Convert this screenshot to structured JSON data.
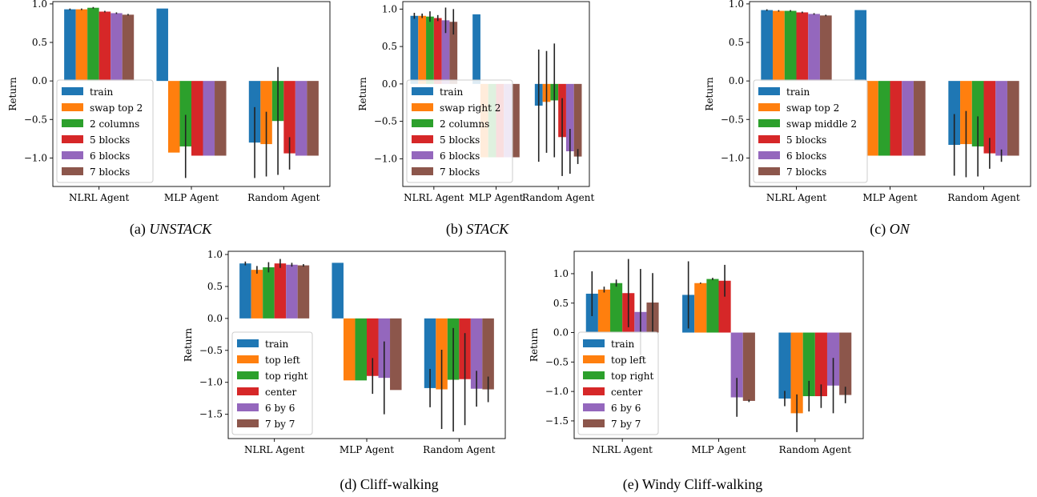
{
  "colors": [
    "#1f77b4",
    "#ff7f0e",
    "#2ca02c",
    "#d62728",
    "#9467bd",
    "#8c564b"
  ],
  "chart_data": [
    {
      "type": "bar",
      "caption_prefix": "(a) ",
      "caption_main": "UNSTACK",
      "caption_italic": true,
      "ylabel": "Return",
      "ylim": [
        -1.37,
        1.03
      ],
      "yticks": [
        "1.0",
        "0.5",
        "0.0",
        "−0.5",
        "−1.0"
      ],
      "ytick_values": [
        1.0,
        0.5,
        0.0,
        -0.5,
        -1.0
      ],
      "categories": [
        "NLRL Agent",
        "MLP Agent",
        "Random Agent"
      ],
      "legend_position": "lower-left",
      "series": [
        {
          "name": "train",
          "values": [
            0.93,
            0.94,
            -0.8
          ],
          "err": [
            0.01,
            0,
            0.46
          ]
        },
        {
          "name": "swap top 2",
          "values": [
            0.93,
            -0.93,
            -0.82
          ],
          "err": [
            0.01,
            0,
            0.42
          ]
        },
        {
          "name": "2 columns",
          "values": [
            0.95,
            -0.85,
            -0.52
          ],
          "err": [
            0.01,
            0.41,
            0.7
          ]
        },
        {
          "name": "5 blocks",
          "values": [
            0.9,
            -0.97,
            -0.94
          ],
          "err": [
            0.01,
            0,
            0.21
          ]
        },
        {
          "name": "6 blocks",
          "values": [
            0.88,
            -0.97,
            -0.97
          ],
          "err": [
            0.01,
            0,
            0
          ]
        },
        {
          "name": "7 blocks",
          "values": [
            0.86,
            -0.97,
            -0.97
          ],
          "err": [
            0.01,
            0,
            0
          ]
        }
      ]
    },
    {
      "type": "bar",
      "caption_prefix": "(b) ",
      "caption_main": "STACK",
      "caption_italic": true,
      "ylabel": "Return",
      "ylim": [
        -1.37,
        1.1
      ],
      "yticks": [
        "1.0",
        "0.5",
        "0.0",
        "−0.5",
        "−1.0"
      ],
      "ytick_values": [
        1.0,
        0.5,
        0.0,
        -0.5,
        -1.0
      ],
      "categories": [
        "NLRL Agent",
        "MLP Agent",
        "Random Agent"
      ],
      "legend_position": "lower-left",
      "series": [
        {
          "name": "train",
          "values": [
            0.91,
            0.93,
            -0.29
          ],
          "err": [
            0.04,
            0,
            0.75
          ]
        },
        {
          "name": "swap right 2",
          "values": [
            0.91,
            -0.98,
            -0.24
          ],
          "err": [
            0.03,
            0,
            0.68
          ]
        },
        {
          "name": "2 columns",
          "values": [
            0.9,
            -0.98,
            -0.22
          ],
          "err": [
            0.07,
            0,
            0.76
          ]
        },
        {
          "name": "5 blocks",
          "values": [
            0.88,
            -0.98,
            -0.71
          ],
          "err": [
            0.04,
            0,
            0.52
          ]
        },
        {
          "name": "6 blocks",
          "values": [
            0.85,
            -0.98,
            -0.9
          ],
          "err": [
            0.17,
            0,
            0.3
          ]
        },
        {
          "name": "7 blocks",
          "values": [
            0.83,
            -0.98,
            -0.97
          ],
          "err": [
            0.17,
            0,
            0.1
          ]
        }
      ]
    },
    {
      "type": "bar",
      "caption_prefix": "(c) ",
      "caption_main": "ON",
      "caption_italic": true,
      "ylabel": "Return",
      "ylim": [
        -1.37,
        1.03
      ],
      "yticks": [
        "1.0",
        "0.5",
        "0.0",
        "−0.5",
        "−1.0"
      ],
      "ytick_values": [
        1.0,
        0.5,
        0.0,
        -0.5,
        -1.0
      ],
      "categories": [
        "NLRL Agent",
        "MLP Agent",
        "Random Agent"
      ],
      "legend_position": "lower-left",
      "series": [
        {
          "name": "train",
          "values": [
            0.92,
            0.92,
            -0.83
          ],
          "err": [
            0.01,
            0,
            0.4
          ]
        },
        {
          "name": "swap top 2",
          "values": [
            0.91,
            -0.97,
            -0.82
          ],
          "err": [
            0.01,
            0,
            0.43
          ]
        },
        {
          "name": "swap middle 2",
          "values": [
            0.91,
            -0.97,
            -0.85
          ],
          "err": [
            0.01,
            0,
            0.39
          ]
        },
        {
          "name": "5 blocks",
          "values": [
            0.89,
            -0.97,
            -0.94
          ],
          "err": [
            0.01,
            0,
            0.2
          ]
        },
        {
          "name": "6 blocks",
          "values": [
            0.87,
            -0.97,
            -0.97
          ],
          "err": [
            0.01,
            0,
            0.08
          ]
        },
        {
          "name": "7 blocks",
          "values": [
            0.85,
            -0.97,
            -0.97
          ],
          "err": [
            0.01,
            0,
            0
          ]
        }
      ]
    },
    {
      "type": "bar",
      "caption_prefix": "(d) ",
      "caption_main": "Cliff-walking",
      "caption_italic": false,
      "ylabel": "Return",
      "ylim": [
        -1.88,
        1.05
      ],
      "yticks": [
        "1.0",
        "0.5",
        "0.0",
        "−0.5",
        "−1.0",
        "−1.5"
      ],
      "ytick_values": [
        1.0,
        0.5,
        0.0,
        -0.5,
        -1.0,
        -1.5
      ],
      "categories": [
        "NLRL Agent",
        "MLP Agent",
        "Random Agent"
      ],
      "legend_position": "lower-left",
      "series": [
        {
          "name": "train",
          "values": [
            0.86,
            0.87,
            -1.09
          ],
          "err": [
            0.03,
            0,
            0.3
          ]
        },
        {
          "name": "top left",
          "values": [
            0.76,
            -0.97,
            -1.11
          ],
          "err": [
            0.06,
            0,
            0.62
          ]
        },
        {
          "name": "top right",
          "values": [
            0.8,
            -0.97,
            -0.96
          ],
          "err": [
            0.08,
            0,
            0.81
          ]
        },
        {
          "name": "center",
          "values": [
            0.86,
            -0.9,
            -0.95
          ],
          "err": [
            0.07,
            0.28,
            0.72
          ]
        },
        {
          "name": "6 by 6",
          "values": [
            0.84,
            -0.93,
            -1.1
          ],
          "err": [
            0.03,
            0.57,
            0.28
          ]
        },
        {
          "name": "7 by 7",
          "values": [
            0.83,
            -1.12,
            -1.11
          ],
          "err": [
            0.02,
            0,
            0.2
          ]
        }
      ]
    },
    {
      "type": "bar",
      "caption_prefix": "(e) ",
      "caption_main": "Windy Cliff-walking",
      "caption_italic": false,
      "ylabel": "Return",
      "ylim": [
        -1.8,
        1.38
      ],
      "yticks": [
        "1.0",
        "0.5",
        "0.0",
        "−0.5",
        "−1.0",
        "−1.5"
      ],
      "ytick_values": [
        1.0,
        0.5,
        0.0,
        -0.5,
        -1.0,
        -1.5
      ],
      "categories": [
        "NLRL Agent",
        "MLP Agent",
        "Random Agent"
      ],
      "legend_position": "lower-left",
      "series": [
        {
          "name": "train",
          "values": [
            0.66,
            0.64,
            -1.12
          ],
          "err": [
            0.38,
            0.57,
            0.13
          ]
        },
        {
          "name": "top left",
          "values": [
            0.73,
            0.84,
            -1.37
          ],
          "err": [
            0.05,
            0.01,
            0.32
          ]
        },
        {
          "name": "top right",
          "values": [
            0.84,
            0.91,
            -1.08
          ],
          "err": [
            0.06,
            0.02,
            0.26
          ]
        },
        {
          "name": "center",
          "values": [
            0.67,
            0.88,
            -1.08
          ],
          "err": [
            0.58,
            0.27,
            0.2
          ]
        },
        {
          "name": "6 by 6",
          "values": [
            0.35,
            -1.1,
            -0.9
          ],
          "err": [
            0.73,
            0.33,
            0.47
          ]
        },
        {
          "name": "7 by 7",
          "values": [
            0.51,
            -1.16,
            -1.06
          ],
          "err": [
            0.5,
            0.02,
            0.14
          ]
        }
      ]
    }
  ]
}
